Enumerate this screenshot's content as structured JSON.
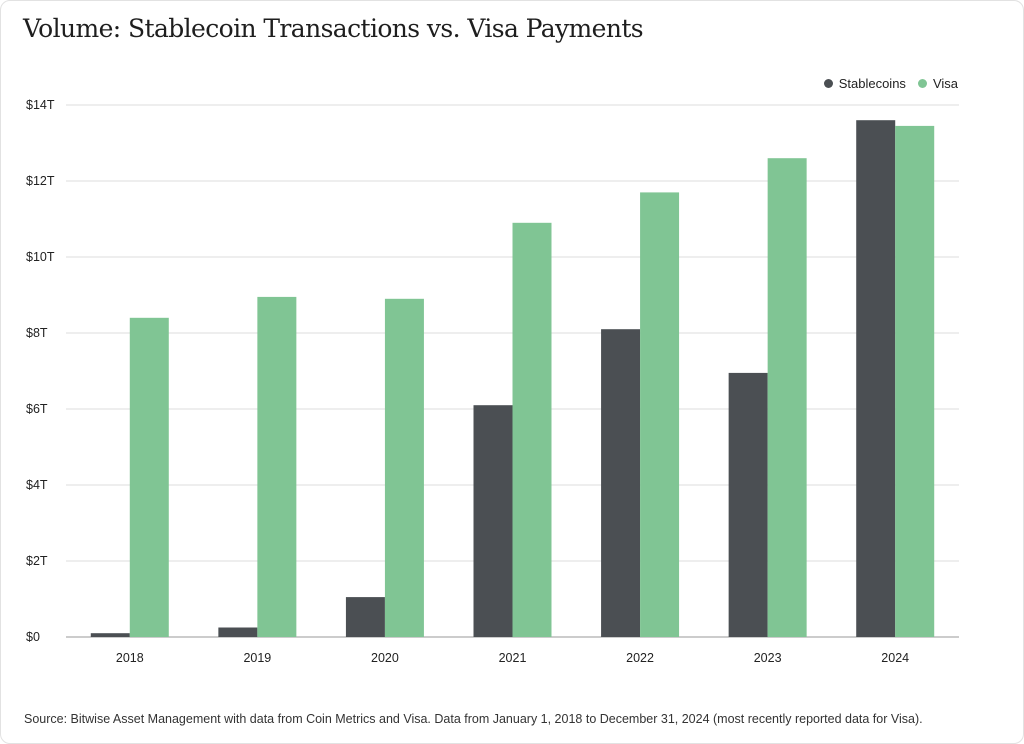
{
  "chart_data": {
    "type": "bar",
    "title": "Volume: Stablecoin Transactions vs. Visa Payments",
    "categories": [
      "2018",
      "2019",
      "2020",
      "2021",
      "2022",
      "2023",
      "2024"
    ],
    "series": [
      {
        "name": "Stablecoins",
        "color": "#4b4f53",
        "values": [
          0.1,
          0.25,
          1.05,
          6.1,
          8.1,
          6.95,
          13.6
        ]
      },
      {
        "name": "Visa",
        "color": "#80c594",
        "values": [
          8.4,
          8.95,
          8.9,
          10.9,
          11.7,
          12.6,
          13.45
        ]
      }
    ],
    "ylim": [
      0,
      14
    ],
    "yticks": [
      0,
      2,
      4,
      6,
      8,
      10,
      12,
      14
    ],
    "ytick_labels": [
      "$0",
      "$2T",
      "$4T",
      "$6T",
      "$8T",
      "$10T",
      "$12T",
      "$14T"
    ],
    "xlabel": "",
    "ylabel": "",
    "grid": true,
    "legend_position": "top-right"
  },
  "footer": {
    "source": "Source: Bitwise Asset Management with data from Coin Metrics and Visa. Data from January 1, 2018 to December 31, 2024 (most recently reported data for Visa)."
  }
}
